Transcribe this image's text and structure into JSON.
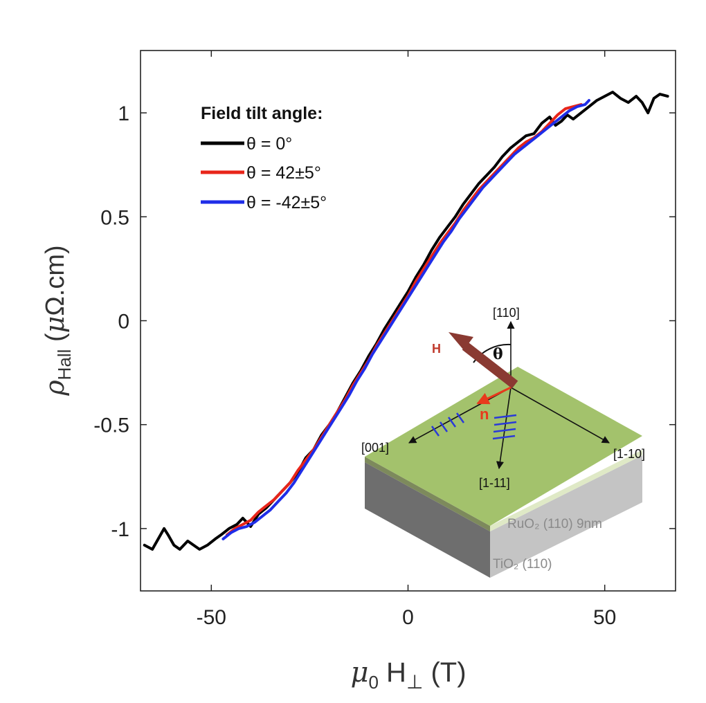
{
  "chart_data": {
    "type": "line",
    "xlabel": "μ0 H⊥ (T)",
    "ylabel": "ρHall (μΩ.cm)",
    "xlim": [
      -68,
      68
    ],
    "ylim": [
      -1.3,
      1.3
    ],
    "xticks": [
      -50,
      0,
      50
    ],
    "yticks": [
      -1,
      -0.5,
      0,
      0.5,
      1
    ],
    "xtick_labels": [
      "-50",
      "0",
      "50"
    ],
    "ytick_labels": [
      "-1",
      "-0.5",
      "0",
      "0.5",
      "1"
    ],
    "legend": {
      "title": "Field tilt angle:",
      "placement": "top-left"
    },
    "series": [
      {
        "name": "θ = 0°",
        "color": "#000000",
        "x": [
          -67,
          -65,
          -63.5,
          -62,
          -61,
          -59.5,
          -58,
          -56,
          -54.5,
          -53,
          -51,
          -49,
          -47.5,
          -45.5,
          -43.5,
          -42,
          -40,
          -38,
          -36,
          -34,
          -32,
          -30,
          -28,
          -26,
          -24,
          -22,
          -20,
          -18,
          -16,
          -14,
          -12,
          -10,
          -8,
          -6,
          -4,
          -2,
          0,
          2,
          4,
          6,
          8,
          10,
          12,
          14,
          16,
          18,
          20,
          22,
          24,
          26,
          28,
          30,
          32,
          34,
          36,
          37.5,
          39,
          40.5,
          42,
          44,
          46,
          48,
          50,
          52,
          54,
          56,
          58,
          59.5,
          61,
          62.5,
          64,
          66
        ],
        "y": [
          -1.08,
          -1.1,
          -1.05,
          -1.0,
          -1.03,
          -1.08,
          -1.1,
          -1.06,
          -1.08,
          -1.1,
          -1.08,
          -1.05,
          -1.03,
          -1.0,
          -0.98,
          -0.95,
          -0.99,
          -0.93,
          -0.9,
          -0.86,
          -0.82,
          -0.78,
          -0.73,
          -0.66,
          -0.62,
          -0.55,
          -0.5,
          -0.44,
          -0.37,
          -0.3,
          -0.24,
          -0.17,
          -0.11,
          -0.04,
          0.02,
          0.08,
          0.14,
          0.21,
          0.27,
          0.34,
          0.4,
          0.45,
          0.5,
          0.56,
          0.61,
          0.66,
          0.7,
          0.74,
          0.79,
          0.83,
          0.86,
          0.89,
          0.9,
          0.95,
          0.98,
          0.94,
          0.96,
          0.99,
          0.97,
          1.0,
          1.03,
          1.06,
          1.08,
          1.1,
          1.07,
          1.05,
          1.08,
          1.05,
          1.0,
          1.07,
          1.09,
          1.08
        ]
      },
      {
        "name": "θ = 42±5°",
        "color": "#e8251a",
        "x": [
          -46,
          -44,
          -42,
          -40,
          -38,
          -36,
          -34,
          -32,
          -30,
          -28,
          -26,
          -24,
          -22,
          -20,
          -18,
          -16,
          -14,
          -12,
          -10,
          -8,
          -6,
          -4,
          -2,
          0,
          2,
          4,
          6,
          8,
          10,
          12,
          14,
          16,
          18,
          20,
          22,
          24,
          26,
          28,
          30,
          32,
          34,
          36,
          38,
          40,
          42,
          44
        ],
        "y": [
          -1.03,
          -1.0,
          -0.98,
          -0.96,
          -0.92,
          -0.89,
          -0.86,
          -0.82,
          -0.78,
          -0.72,
          -0.67,
          -0.62,
          -0.56,
          -0.5,
          -0.44,
          -0.38,
          -0.31,
          -0.25,
          -0.19,
          -0.12,
          -0.06,
          0.0,
          0.06,
          0.12,
          0.19,
          0.25,
          0.31,
          0.37,
          0.42,
          0.47,
          0.53,
          0.58,
          0.63,
          0.67,
          0.71,
          0.75,
          0.79,
          0.83,
          0.86,
          0.88,
          0.91,
          0.95,
          0.99,
          1.02,
          1.03,
          1.04
        ]
      },
      {
        "name": "θ = -42±5°",
        "color": "#1f2de8",
        "x": [
          -47,
          -45,
          -43,
          -41,
          -39,
          -37,
          -35,
          -33,
          -31,
          -29,
          -27,
          -25,
          -23,
          -21,
          -19,
          -17,
          -15,
          -13,
          -11,
          -9,
          -7,
          -5,
          -3,
          -1,
          1,
          3,
          5,
          7,
          9,
          11,
          13,
          15,
          17,
          19,
          21,
          23,
          25,
          27,
          29,
          31,
          33,
          35,
          37,
          39,
          41,
          43,
          45,
          46
        ],
        "y": [
          -1.05,
          -1.02,
          -1.0,
          -0.99,
          -0.97,
          -0.94,
          -0.91,
          -0.87,
          -0.83,
          -0.78,
          -0.72,
          -0.66,
          -0.6,
          -0.54,
          -0.48,
          -0.42,
          -0.36,
          -0.29,
          -0.23,
          -0.16,
          -0.1,
          -0.04,
          0.02,
          0.08,
          0.14,
          0.2,
          0.26,
          0.32,
          0.38,
          0.43,
          0.49,
          0.54,
          0.59,
          0.64,
          0.68,
          0.72,
          0.76,
          0.8,
          0.83,
          0.86,
          0.89,
          0.92,
          0.95,
          0.98,
          1.01,
          1.03,
          1.04,
          1.06
        ]
      }
    ]
  },
  "inset": {
    "axis_labels": {
      "up": "[110]",
      "left": "[001]",
      "right": "[1-10]",
      "down": "[1-11]"
    },
    "field_label": "H",
    "angle_label": "θ",
    "neel_label": "n",
    "film_label": "RuO₂ (110) 9nm",
    "substrate_label": "TiO₂ (110)",
    "colors": {
      "film": "#a3c26c",
      "field_arrow": "#8a3a32",
      "neel_arrow": "#e83a1c",
      "hatch": "#2a3ad8"
    }
  }
}
